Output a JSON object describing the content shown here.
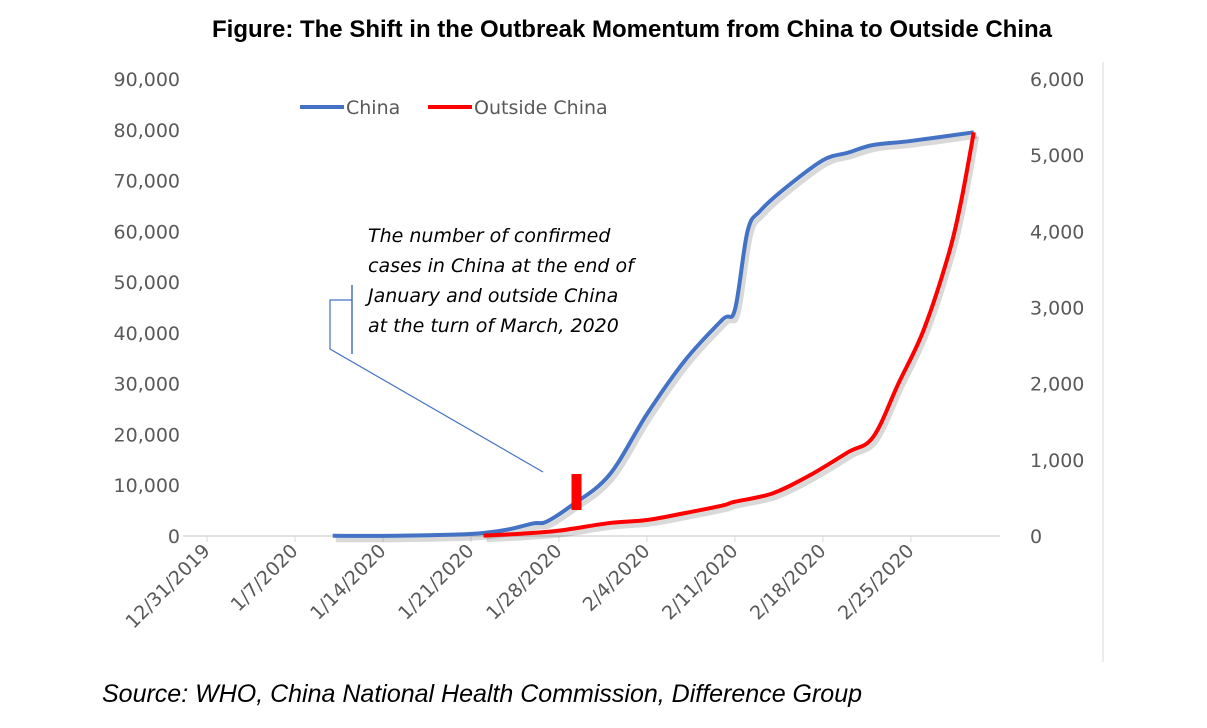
{
  "chart_data": {
    "type": "line",
    "title": "Figure: The Shift in the Outbreak Momentum from China to Outside China",
    "source": "Source: WHO, China National Health Commission, Difference Group",
    "annotation": "The number of confirmed cases in China at the end of January and outside China at the turn of March, 2020",
    "annotation_lines": [
      "The number of confirmed",
      "cases in China at the end of",
      "January and outside China",
      "at the turn of March, 2020"
    ],
    "x_tick_labels": [
      "12/31/2019",
      "1/7/2020",
      "1/14/2020",
      "1/21/2020",
      "1/28/2020",
      "2/4/2020",
      "2/11/2020",
      "2/18/2020",
      "2/25/2020"
    ],
    "y_left": {
      "range": [
        0,
        90000
      ],
      "tick_labels": [
        "0",
        "10,000",
        "20,000",
        "30,000",
        "40,000",
        "50,000",
        "60,000",
        "70,000",
        "80,000",
        "90,000"
      ]
    },
    "y_right": {
      "range": [
        0,
        6000
      ],
      "tick_labels": [
        "0",
        "1,000",
        "2,000",
        "3,000",
        "4,000",
        "5,000",
        "6,000"
      ]
    },
    "legend_placement": "top-left",
    "series": [
      {
        "name": "China",
        "axis": "left",
        "color": "#4472C4",
        "x": [
          "1/10",
          "1/15",
          "1/20",
          "1/22",
          "1/24",
          "1/26",
          "1/27",
          "1/29",
          "2/1",
          "2/4",
          "2/7",
          "2/10",
          "2/11",
          "2/12",
          "2/13",
          "2/15",
          "2/18",
          "2/20",
          "2/22",
          "2/25",
          "3/1"
        ],
        "values": [
          40,
          50,
          300,
          600,
          1300,
          2500,
          2800,
          6000,
          12000,
          24000,
          34500,
          42600,
          44600,
          60000,
          64000,
          68500,
          74000,
          75500,
          77000,
          77800,
          79500
        ]
      },
      {
        "name": "Outside China",
        "axis": "right",
        "color": "#FF0000",
        "x": [
          "1/22",
          "1/25",
          "1/28",
          "2/1",
          "2/4",
          "2/7",
          "2/10",
          "2/11",
          "2/14",
          "2/17",
          "2/20",
          "2/22",
          "2/24",
          "2/26",
          "2/28",
          "2/29",
          "3/1"
        ],
        "values": [
          5,
          30,
          70,
          170,
          210,
          300,
          400,
          450,
          560,
          800,
          1100,
          1300,
          2000,
          2700,
          3700,
          4400,
          5300
        ]
      }
    ],
    "highlight_marker": {
      "x": "1/29",
      "color": "#FF0000"
    }
  }
}
